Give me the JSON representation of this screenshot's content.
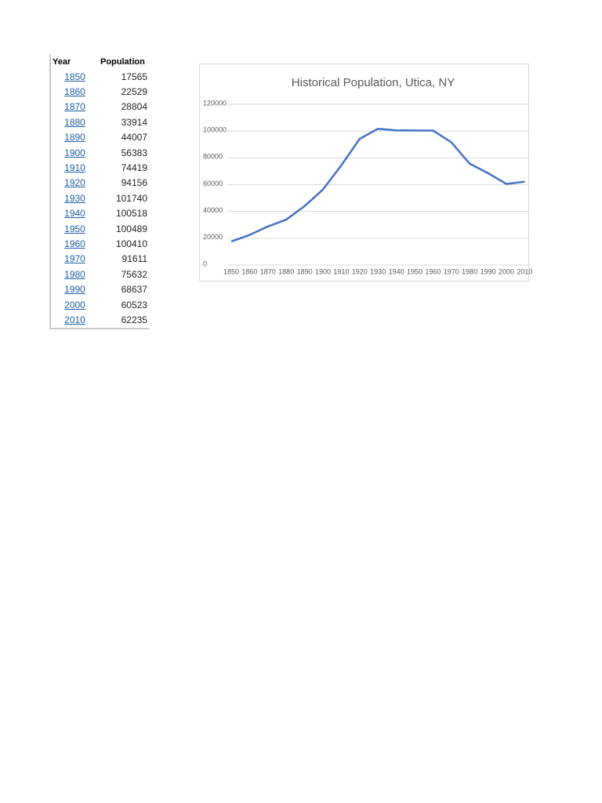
{
  "table": {
    "header": [
      "Year",
      "Population"
    ],
    "rows": [
      [
        "1850",
        "17565"
      ],
      [
        "1860",
        "22529"
      ],
      [
        "1870",
        "28804"
      ],
      [
        "1880",
        "33914"
      ],
      [
        "1890",
        "44007"
      ],
      [
        "1900",
        "56383"
      ],
      [
        "1910",
        "74419"
      ],
      [
        "1920",
        "94156"
      ],
      [
        "1930",
        "101740"
      ],
      [
        "1940",
        "100518"
      ],
      [
        "1950",
        "100489"
      ],
      [
        "1960",
        "100410"
      ],
      [
        "1970",
        "91611"
      ],
      [
        "1980",
        "75632"
      ],
      [
        "1990",
        "68637"
      ],
      [
        "2000",
        "60523"
      ],
      [
        "2010",
        "62235"
      ]
    ]
  },
  "chart_data": {
    "type": "line",
    "title": "Historical Population, Utica, NY",
    "categories": [
      "1850",
      "1860",
      "1870",
      "1880",
      "1890",
      "1900",
      "1910",
      "1920",
      "1930",
      "1940",
      "1950",
      "1960",
      "1970",
      "1980",
      "1990",
      "2000",
      "2010"
    ],
    "series": [
      {
        "name": "Population",
        "color": "#4472c4",
        "values": [
          17565,
          22529,
          28804,
          33914,
          44007,
          56383,
          74419,
          94156,
          101740,
          100518,
          100489,
          100410,
          91611,
          75632,
          68637,
          60523,
          62235
        ]
      }
    ],
    "ylim": [
      0,
      120000
    ],
    "yticks": [
      0,
      20000,
      40000,
      60000,
      80000,
      100000,
      120000
    ],
    "grid": true
  }
}
